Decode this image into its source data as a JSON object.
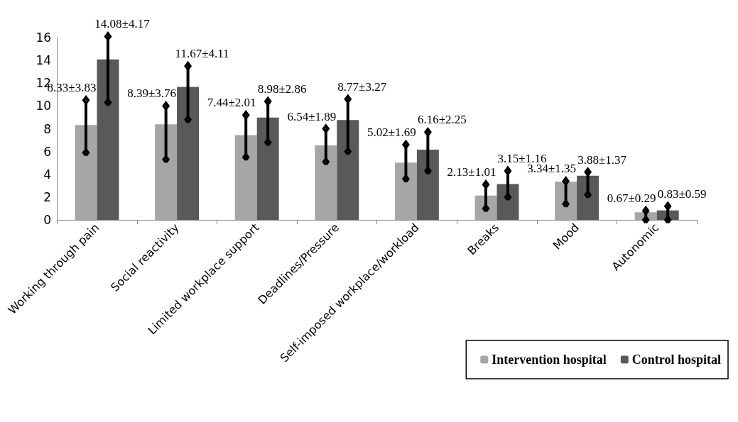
{
  "chart_data": {
    "type": "bar",
    "categories": [
      "Working through pain",
      "Social reactivity",
      "Limited workplace support",
      "Deadlines/Pressure",
      "Self-imposed workplace/workload",
      "Breaks",
      "Mood",
      "Autonomic"
    ],
    "series": [
      {
        "name": "Intervention hospital",
        "color": "#a6a6a6",
        "values": [
          8.33,
          8.39,
          7.44,
          6.54,
          5.02,
          2.13,
          3.34,
          0.67
        ],
        "errors": [
          [
            5.9,
            10.5
          ],
          [
            5.3,
            10.0
          ],
          [
            5.5,
            9.2
          ],
          [
            5.1,
            8.0
          ],
          [
            3.6,
            6.6
          ],
          [
            1.0,
            3.1
          ],
          [
            1.4,
            3.4
          ],
          [
            0,
            0.8
          ]
        ],
        "value_labels": [
          "8.33±3.83",
          "8.39±3.76",
          "7.44±2.01",
          "6.54±1.89",
          "5.02±1.69",
          "2.13±1.01",
          "3.34±1.35",
          "0.67±0.29"
        ]
      },
      {
        "name": "Control hospital",
        "color": "#595959",
        "values": [
          14.08,
          11.67,
          8.98,
          8.77,
          6.16,
          3.15,
          3.88,
          0.83
        ],
        "errors": [
          [
            10.3,
            16.1
          ],
          [
            8.8,
            13.5
          ],
          [
            6.8,
            10.4
          ],
          [
            6.0,
            10.6
          ],
          [
            4.3,
            7.7
          ],
          [
            2.0,
            4.3
          ],
          [
            2.2,
            4.2
          ],
          [
            0,
            1.2
          ]
        ],
        "value_labels": [
          "14.08±4.17",
          "11.67±4.11",
          "8.98±2.86",
          "8.77±3.27",
          "6.16±2.25",
          "3.15±1.16",
          "3.88±1.37",
          "0.83±0.59"
        ]
      }
    ],
    "ylim": [
      0,
      16
    ],
    "yticks": [
      0,
      2,
      4,
      6,
      8,
      10,
      12,
      14,
      16
    ],
    "grid": false,
    "legend": "bottom right"
  }
}
